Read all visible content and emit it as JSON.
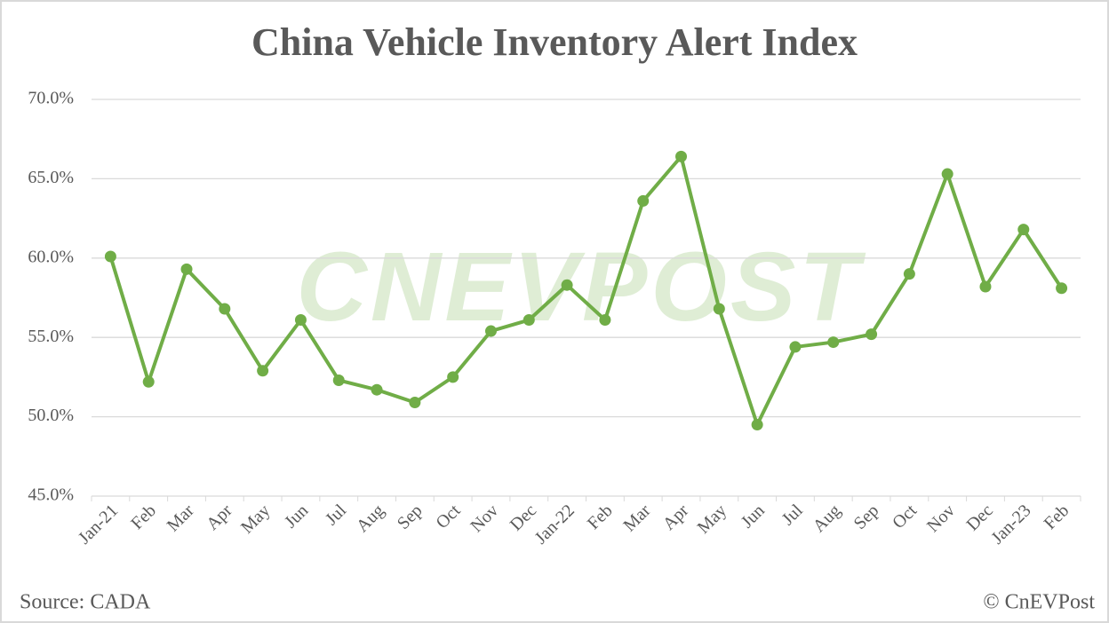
{
  "chart_data": {
    "type": "line",
    "title": "China Vehicle Inventory Alert Index",
    "categories": [
      "Jan-21",
      "Feb",
      "Mar",
      "Apr",
      "May",
      "Jun",
      "Jul",
      "Aug",
      "Sep",
      "Oct",
      "Nov",
      "Dec",
      "Jan-22",
      "Feb",
      "Mar",
      "Apr",
      "May",
      "Jun",
      "Jul",
      "Aug",
      "Sep",
      "Oct",
      "Nov",
      "Dec",
      "Jan-23",
      "Feb"
    ],
    "series": [
      {
        "color": "#70ad47",
        "values": [
          60.1,
          52.2,
          59.3,
          56.8,
          52.9,
          56.1,
          52.3,
          51.7,
          50.9,
          52.5,
          55.4,
          56.1,
          58.3,
          56.1,
          63.6,
          66.4,
          56.8,
          49.5,
          54.4,
          54.7,
          55.2,
          59.0,
          65.3,
          58.2,
          61.8,
          58.1
        ]
      }
    ],
    "ylim": [
      45,
      70
    ],
    "yticks": [
      {
        "value": 45,
        "label": "45.0%"
      },
      {
        "value": 50,
        "label": "50.0%"
      },
      {
        "value": 55,
        "label": "55.0%"
      },
      {
        "value": 60,
        "label": "60.0%"
      },
      {
        "value": 65,
        "label": "65.0%"
      },
      {
        "value": 70,
        "label": "70.0%"
      }
    ],
    "grid": true,
    "watermark": "CNEVPOST",
    "source": "Source: CADA",
    "credit": "© CnEVPost"
  }
}
